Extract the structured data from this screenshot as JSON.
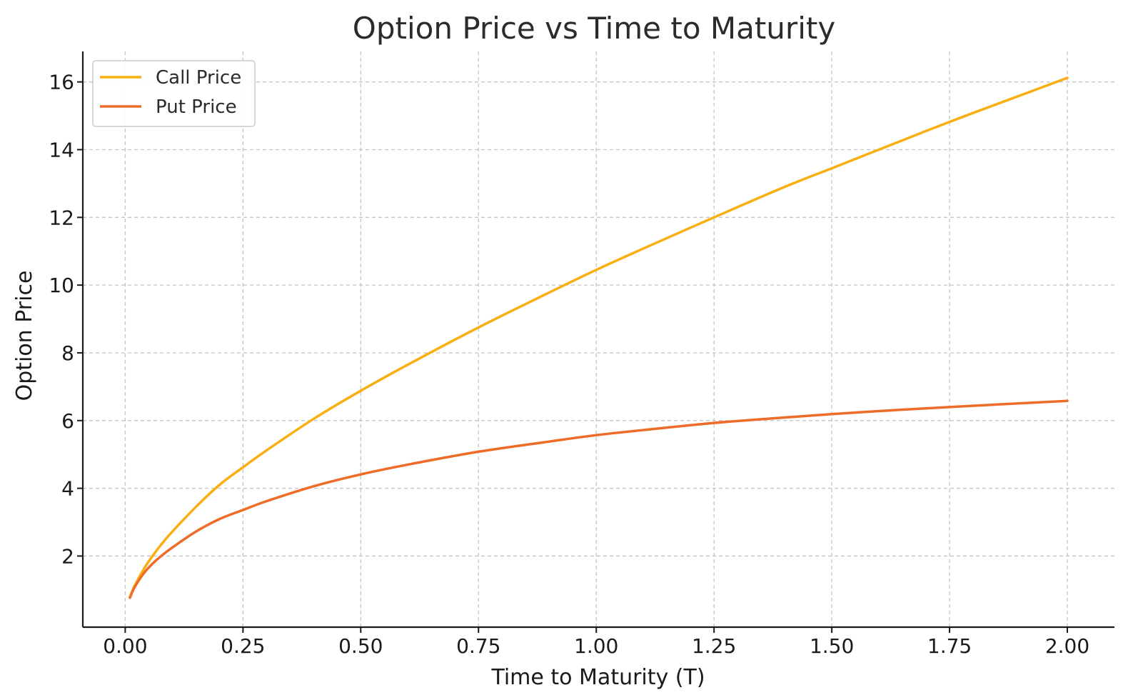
{
  "chart_data": {
    "type": "line",
    "title": "Option Price vs Time to Maturity",
    "xlabel": "Time to Maturity (T)",
    "ylabel": "Option Price",
    "xlim": [
      -0.09,
      2.1
    ],
    "ylim": [
      -0.1,
      16.9
    ],
    "xticks": [
      0.0,
      0.25,
      0.5,
      0.75,
      1.0,
      1.25,
      1.5,
      1.75,
      2.0
    ],
    "xtick_labels": [
      "0.00",
      "0.25",
      "0.50",
      "0.75",
      "1.00",
      "1.25",
      "1.50",
      "1.75",
      "2.00"
    ],
    "yticks": [
      2,
      4,
      6,
      8,
      10,
      12,
      14,
      16
    ],
    "ytick_labels": [
      "2",
      "4",
      "6",
      "8",
      "10",
      "12",
      "14",
      "16"
    ],
    "grid": true,
    "legend": {
      "placement": "top-left"
    },
    "series": [
      {
        "name": "Call Price",
        "color": "#F9AE12",
        "x": [
          0.01,
          0.02,
          0.04,
          0.06,
          0.08,
          0.1,
          0.15,
          0.2,
          0.25,
          0.3,
          0.4,
          0.5,
          0.6,
          0.75,
          0.9,
          1.0,
          1.1,
          1.25,
          1.4,
          1.5,
          1.6,
          1.75,
          1.9,
          2.0
        ],
        "y": [
          0.78,
          1.12,
          1.63,
          2.04,
          2.4,
          2.72,
          3.45,
          4.1,
          4.62,
          5.12,
          6.05,
          6.88,
          7.65,
          8.75,
          9.78,
          10.45,
          11.08,
          12.0,
          12.9,
          13.45,
          14.0,
          14.82,
          15.6,
          16.12
        ]
      },
      {
        "name": "Put Price",
        "color": "#EE6C28",
        "x": [
          0.01,
          0.02,
          0.04,
          0.06,
          0.08,
          0.1,
          0.15,
          0.2,
          0.25,
          0.3,
          0.4,
          0.5,
          0.6,
          0.75,
          0.9,
          1.0,
          1.1,
          1.25,
          1.4,
          1.5,
          1.6,
          1.75,
          1.9,
          2.0
        ],
        "y": [
          0.77,
          1.08,
          1.5,
          1.8,
          2.04,
          2.25,
          2.72,
          3.09,
          3.36,
          3.62,
          4.06,
          4.41,
          4.7,
          5.08,
          5.38,
          5.57,
          5.72,
          5.93,
          6.09,
          6.19,
          6.28,
          6.4,
          6.51,
          6.58
        ]
      }
    ]
  }
}
